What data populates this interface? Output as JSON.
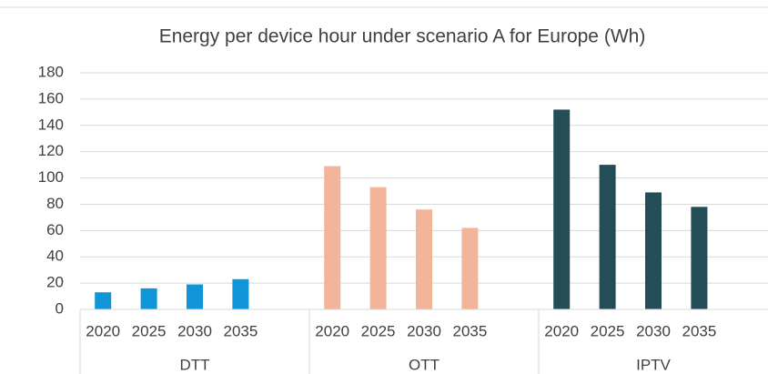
{
  "chart_data": {
    "type": "bar",
    "title": "Energy per device hour under scenario A for Europe (Wh)",
    "groups": [
      {
        "name": "DTT",
        "color": "#0f95d8",
        "categories": [
          "2020",
          "2025",
          "2030",
          "2035"
        ],
        "values": [
          13,
          16,
          19,
          23
        ]
      },
      {
        "name": "OTT",
        "color": "#f2b59a",
        "categories": [
          "2020",
          "2025",
          "2030",
          "2035"
        ],
        "values": [
          109,
          93,
          76,
          62
        ]
      },
      {
        "name": "IPTV",
        "color": "#234d57",
        "categories": [
          "2020",
          "2025",
          "2030",
          "2035"
        ],
        "values": [
          152,
          110,
          89,
          78
        ]
      }
    ],
    "ylim": [
      0,
      180
    ],
    "yticks": [
      0,
      20,
      40,
      60,
      80,
      100,
      120,
      140,
      160,
      180
    ],
    "grid": true
  }
}
